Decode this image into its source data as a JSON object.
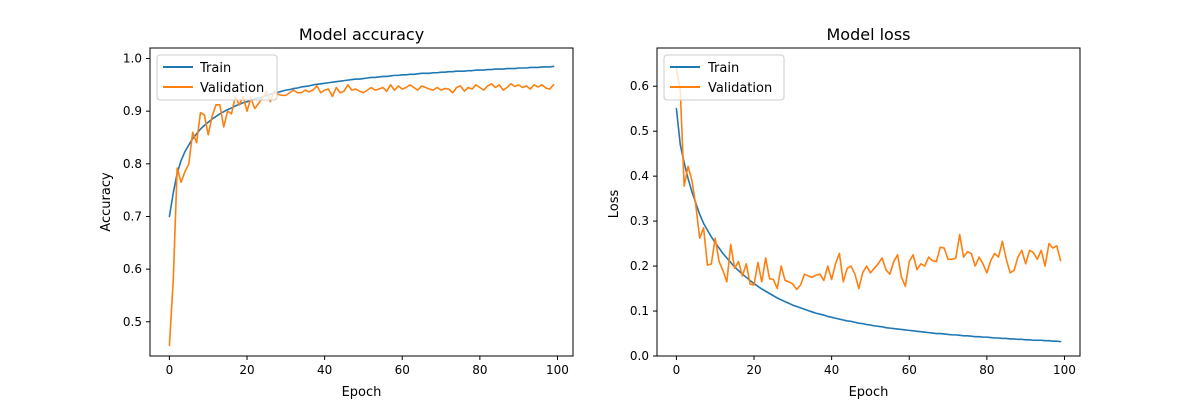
{
  "colors": {
    "train": "#1f77b4",
    "validation": "#ff7f0e"
  },
  "chart_data": [
    {
      "type": "line",
      "title": "Model accuracy",
      "xlabel": "Epoch",
      "ylabel": "Accuracy",
      "xlim": [
        -5,
        104
      ],
      "ylim": [
        0.435,
        1.02
      ],
      "xticks": [
        0,
        20,
        40,
        60,
        80,
        100
      ],
      "xtick_labels": [
        "0",
        "20",
        "40",
        "60",
        "80",
        "100"
      ],
      "yticks": [
        0.5,
        0.6,
        0.7,
        0.8,
        0.9,
        1.0
      ],
      "ytick_labels": [
        "0.5",
        "0.6",
        "0.7",
        "0.8",
        "0.9",
        "1.0"
      ],
      "legend": {
        "position": "top-left",
        "entries": [
          "Train",
          "Validation"
        ]
      },
      "series": [
        {
          "name": "Train",
          "color": "#1f77b4",
          "x_start": 0,
          "values": [
            0.7,
            0.745,
            0.782,
            0.806,
            0.823,
            0.836,
            0.848,
            0.857,
            0.866,
            0.873,
            0.879,
            0.885,
            0.89,
            0.895,
            0.899,
            0.903,
            0.906,
            0.91,
            0.913,
            0.916,
            0.918,
            0.921,
            0.923,
            0.925,
            0.927,
            0.93,
            0.932,
            0.934,
            0.936,
            0.938,
            0.94,
            0.941,
            0.943,
            0.944,
            0.946,
            0.947,
            0.948,
            0.95,
            0.951,
            0.952,
            0.953,
            0.954,
            0.955,
            0.956,
            0.957,
            0.958,
            0.959,
            0.96,
            0.961,
            0.961,
            0.962,
            0.963,
            0.964,
            0.964,
            0.965,
            0.966,
            0.966,
            0.967,
            0.968,
            0.968,
            0.969,
            0.969,
            0.97,
            0.97,
            0.971,
            0.972,
            0.972,
            0.972,
            0.973,
            0.973,
            0.974,
            0.974,
            0.975,
            0.975,
            0.976,
            0.976,
            0.976,
            0.977,
            0.977,
            0.978,
            0.978,
            0.978,
            0.979,
            0.979,
            0.98,
            0.98,
            0.98,
            0.981,
            0.981,
            0.981,
            0.982,
            0.982,
            0.982,
            0.983,
            0.983,
            0.983,
            0.984,
            0.984,
            0.984,
            0.985
          ]
        },
        {
          "name": "Validation",
          "color": "#ff7f0e",
          "x_start": 0,
          "values": [
            0.455,
            0.58,
            0.792,
            0.765,
            0.785,
            0.8,
            0.86,
            0.84,
            0.897,
            0.893,
            0.855,
            0.89,
            0.912,
            0.912,
            0.87,
            0.9,
            0.895,
            0.928,
            0.912,
            0.928,
            0.9,
            0.925,
            0.905,
            0.915,
            0.925,
            0.938,
            0.918,
            0.938,
            0.932,
            0.93,
            0.93,
            0.935,
            0.94,
            0.935,
            0.935,
            0.94,
            0.937,
            0.94,
            0.948,
            0.935,
            0.94,
            0.942,
            0.928,
            0.945,
            0.935,
            0.938,
            0.95,
            0.94,
            0.942,
            0.938,
            0.935,
            0.94,
            0.945,
            0.94,
            0.942,
            0.945,
            0.938,
            0.95,
            0.94,
            0.948,
            0.942,
            0.945,
            0.95,
            0.945,
            0.94,
            0.948,
            0.945,
            0.942,
            0.94,
            0.945,
            0.94,
            0.943,
            0.942,
            0.935,
            0.945,
            0.948,
            0.938,
            0.945,
            0.942,
            0.95,
            0.945,
            0.94,
            0.948,
            0.952,
            0.945,
            0.95,
            0.94,
            0.945,
            0.952,
            0.947,
            0.95,
            0.945,
            0.948,
            0.942,
            0.95,
            0.946,
            0.95,
            0.944,
            0.942,
            0.95
          ]
        }
      ]
    },
    {
      "type": "line",
      "title": "Model loss",
      "xlabel": "Epoch",
      "ylabel": "Loss",
      "xlim": [
        -5,
        104
      ],
      "ylim": [
        0,
        0.685
      ],
      "xticks": [
        0,
        20,
        40,
        60,
        80,
        100
      ],
      "xtick_labels": [
        "0",
        "20",
        "40",
        "60",
        "80",
        "100"
      ],
      "yticks": [
        0.0,
        0.1,
        0.2,
        0.3,
        0.4,
        0.5,
        0.6
      ],
      "ytick_labels": [
        "0.0",
        "0.1",
        "0.2",
        "0.3",
        "0.4",
        "0.5",
        "0.6"
      ],
      "legend": {
        "position": "top-left",
        "entries": [
          "Train",
          "Validation"
        ]
      },
      "series": [
        {
          "name": "Train",
          "color": "#1f77b4",
          "x_start": 0,
          "values": [
            0.55,
            0.47,
            0.43,
            0.395,
            0.365,
            0.34,
            0.315,
            0.295,
            0.28,
            0.265,
            0.252,
            0.24,
            0.228,
            0.218,
            0.208,
            0.198,
            0.19,
            0.182,
            0.175,
            0.168,
            0.161,
            0.155,
            0.149,
            0.144,
            0.139,
            0.134,
            0.129,
            0.125,
            0.121,
            0.117,
            0.113,
            0.11,
            0.107,
            0.104,
            0.101,
            0.098,
            0.095,
            0.093,
            0.091,
            0.088,
            0.086,
            0.084,
            0.082,
            0.08,
            0.078,
            0.077,
            0.075,
            0.073,
            0.072,
            0.07,
            0.069,
            0.067,
            0.066,
            0.065,
            0.063,
            0.062,
            0.061,
            0.06,
            0.059,
            0.058,
            0.057,
            0.056,
            0.055,
            0.054,
            0.053,
            0.052,
            0.051,
            0.05,
            0.05,
            0.049,
            0.048,
            0.047,
            0.047,
            0.046,
            0.045,
            0.045,
            0.044,
            0.043,
            0.043,
            0.042,
            0.042,
            0.041,
            0.04,
            0.04,
            0.039,
            0.039,
            0.038,
            0.038,
            0.037,
            0.037,
            0.036,
            0.036,
            0.035,
            0.035,
            0.035,
            0.034,
            0.034,
            0.033,
            0.033,
            0.032
          ]
        },
        {
          "name": "Validation",
          "color": "#ff7f0e",
          "x_start": 0,
          "values": [
            0.64,
            0.59,
            0.378,
            0.422,
            0.39,
            0.335,
            0.262,
            0.285,
            0.202,
            0.205,
            0.262,
            0.21,
            0.19,
            0.165,
            0.248,
            0.195,
            0.21,
            0.178,
            0.205,
            0.16,
            0.158,
            0.208,
            0.165,
            0.218,
            0.172,
            0.17,
            0.15,
            0.2,
            0.168,
            0.165,
            0.16,
            0.148,
            0.158,
            0.182,
            0.178,
            0.175,
            0.18,
            0.182,
            0.168,
            0.2,
            0.17,
            0.205,
            0.228,
            0.165,
            0.195,
            0.2,
            0.182,
            0.15,
            0.185,
            0.2,
            0.185,
            0.195,
            0.205,
            0.218,
            0.192,
            0.182,
            0.21,
            0.225,
            0.175,
            0.155,
            0.21,
            0.225,
            0.192,
            0.205,
            0.2,
            0.22,
            0.212,
            0.21,
            0.242,
            0.24,
            0.215,
            0.215,
            0.218,
            0.27,
            0.22,
            0.232,
            0.228,
            0.2,
            0.22,
            0.205,
            0.185,
            0.212,
            0.228,
            0.22,
            0.255,
            0.215,
            0.185,
            0.19,
            0.22,
            0.235,
            0.205,
            0.235,
            0.23,
            0.215,
            0.235,
            0.2,
            0.25,
            0.24,
            0.245,
            0.212
          ]
        }
      ]
    }
  ]
}
